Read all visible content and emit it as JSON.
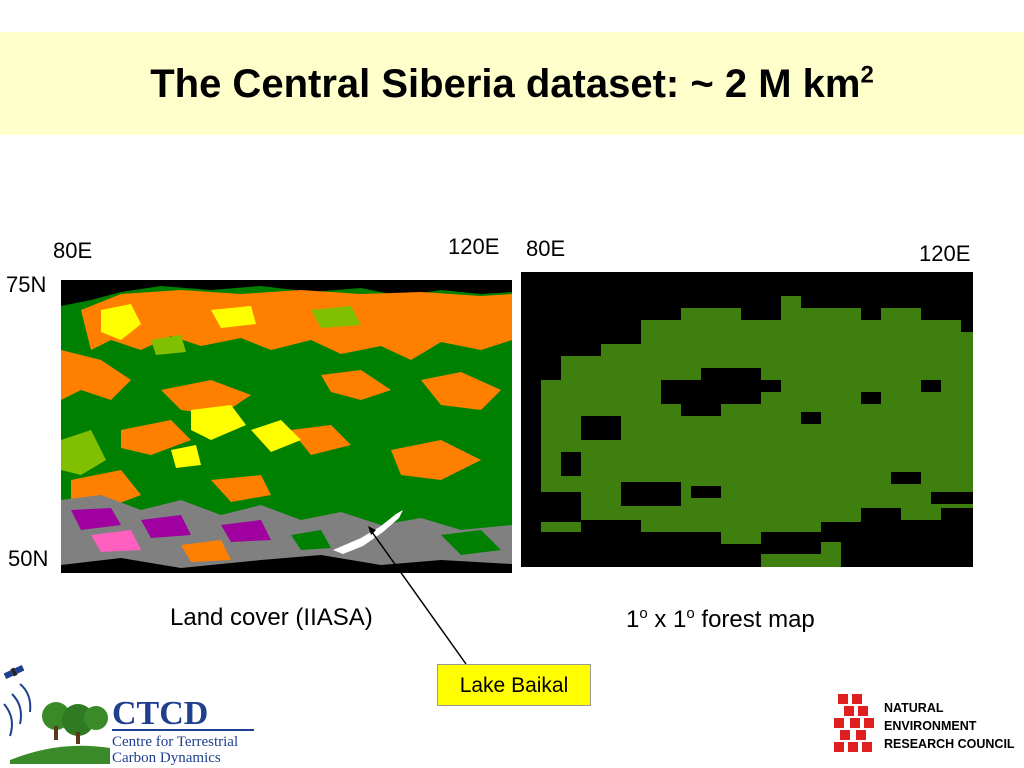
{
  "title": {
    "text": "The Central Siberia dataset: ~ 2 M km",
    "superscript": "2"
  },
  "left_map": {
    "label_80e": "80E",
    "label_120e": "120E",
    "label_75n": "75N",
    "label_50n": "50N",
    "caption": "Land cover (IIASA)"
  },
  "right_map": {
    "label_80e": "80E",
    "label_120e": "120E",
    "caption_parts": [
      "1",
      "o",
      " x 1",
      "o",
      " forest map"
    ]
  },
  "callout": {
    "text": "Lake Baikal"
  },
  "ctcd_logo": {
    "abbr": "CTCD",
    "line1": "Centre for Terrestrial",
    "line2": "Carbon Dynamics"
  },
  "nerc_logo": {
    "line1": "NATURAL",
    "line2": "ENVIRONMENT",
    "line3": "RESEARCH COUNCIL"
  },
  "colors": {
    "title_bg": "#ffffcc",
    "forest_green": "#3f7f10",
    "landcover_green": "#008000",
    "landcover_orange": "#ff8000",
    "landcover_yellow": "#ffff00",
    "callout_bg": "#ffff00",
    "ctcd_blue": "#1f3f8f",
    "nerc_red": "#e02020"
  }
}
